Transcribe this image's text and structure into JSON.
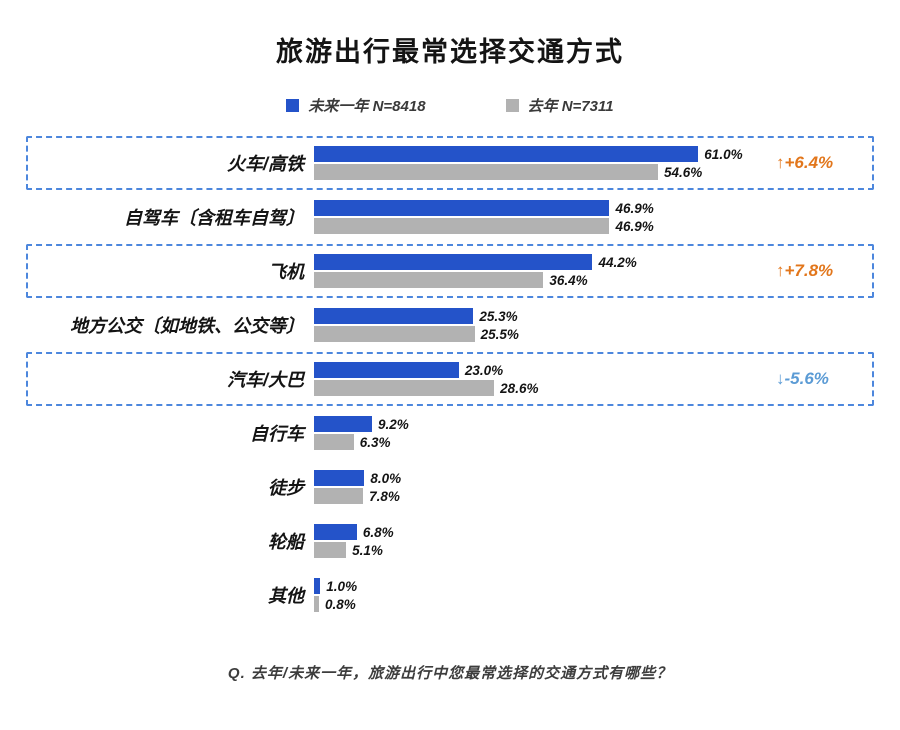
{
  "title": "旅游出行最常选择交通方式",
  "legend": {
    "items": [
      {
        "label": "未来一年 N=8418",
        "color": "#2453c9"
      },
      {
        "label": "去年 N=7311",
        "color": "#b2b2b2"
      }
    ]
  },
  "footnote": "Q. 去年/未来一年，旅游出行中您最常选择的交通方式有哪些？",
  "chart_data": {
    "type": "bar",
    "orientation": "horizontal",
    "title": "旅游出行最常选择交通方式",
    "xlim": [
      0,
      100
    ],
    "grid": false,
    "legend_position": "top",
    "categories": [
      "火车/高铁",
      "自驾车〔含租车自驾〕",
      "飞机",
      "地方公交〔如地铁、公交等〕",
      "汽车/大巴",
      "自行车",
      "徒步",
      "轮船",
      "其他"
    ],
    "series": [
      {
        "name": "未来一年 N=8418",
        "color": "#2453c9",
        "values": [
          61.0,
          46.9,
          44.2,
          25.3,
          23.0,
          9.2,
          8.0,
          6.8,
          1.0
        ]
      },
      {
        "name": "去年 N=7311",
        "color": "#b2b2b2",
        "values": [
          54.6,
          46.9,
          36.4,
          25.5,
          28.6,
          6.3,
          7.8,
          5.1,
          0.8
        ]
      }
    ],
    "annotations": [
      {
        "row": 0,
        "text": "↑+6.4%",
        "color": "#e2761b"
      },
      {
        "row": 2,
        "text": "↑+7.8%",
        "color": "#e2761b"
      },
      {
        "row": 4,
        "text": "↓-5.6%",
        "color": "#5b9bd5"
      }
    ],
    "highlight_box_color": "#4d87dd"
  }
}
